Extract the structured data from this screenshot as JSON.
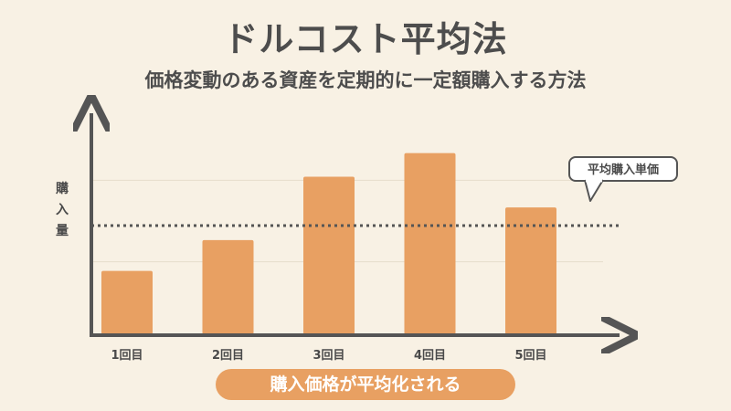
{
  "title": "ドルコスト平均法",
  "subtitle": "価格変動のある資産を定期的に一定額購入する方法",
  "callout_label": "平均購入単価",
  "footer_pill": "購入価格が平均化される",
  "colors": {
    "bar": "#e8a062",
    "axis": "#555555",
    "background": "#f8f1e4",
    "pill": "#e8a062"
  },
  "chart_data": {
    "type": "bar",
    "categories": [
      "1回目",
      "2回目",
      "3回目",
      "4回目",
      "5回目"
    ],
    "values": [
      35,
      52,
      87,
      100,
      70
    ],
    "ylabel": "購入量",
    "xlabel": "",
    "ylim": [
      0,
      120
    ],
    "average_line": {
      "value": 60,
      "label": "平均購入単価",
      "style": "dotted"
    },
    "grid": true
  }
}
